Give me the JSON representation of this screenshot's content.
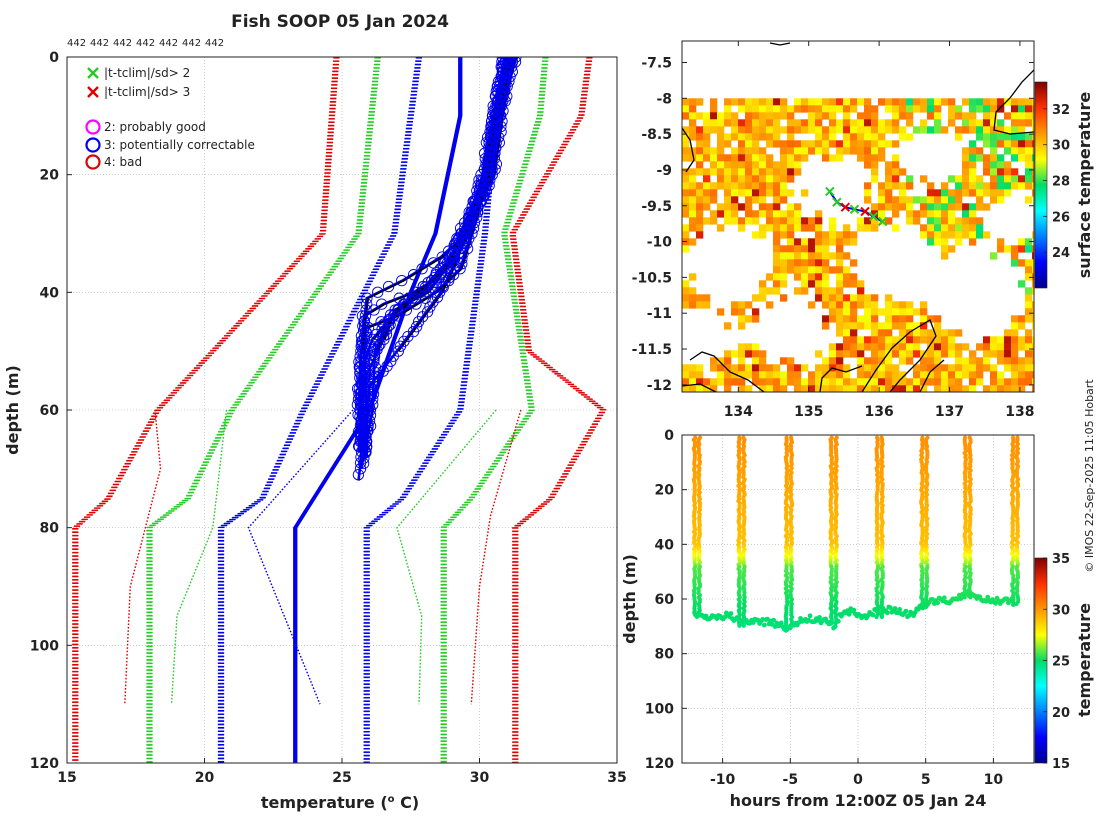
{
  "colors": {
    "red": "#e00000",
    "green": "#22cc22",
    "blue": "#0000ee",
    "black": "#000000",
    "magenta": "#ff00ff",
    "coast": "#000000"
  },
  "chart_data": [
    {
      "id": "profiles",
      "type": "line",
      "title": "Fish SOOP 05 Jan 2024",
      "id_labels": [
        "442",
        "442",
        "442",
        "442",
        "442",
        "442",
        "442"
      ],
      "xlabel": "temperature (",
      "xlabel_sup": "o",
      "xlabel_end": " C)",
      "ylabel": "depth (m)",
      "xlim": [
        15,
        35
      ],
      "ylim": [
        0,
        120
      ],
      "xticks": [
        15,
        20,
        25,
        30,
        35
      ],
      "yticks": [
        0,
        20,
        40,
        60,
        80,
        100,
        120
      ],
      "legend": [
        {
          "symbol": "x",
          "color": "#22cc22",
          "label": "|t-tclim|/sd> 2"
        },
        {
          "symbol": "x",
          "color": "#e00000",
          "label": "|t-tclim|/sd> 3"
        },
        {
          "symbol": "o",
          "color": "#ff00ff",
          "label": "2: probably good"
        },
        {
          "symbol": "o",
          "color": "#0000ee",
          "label": "3: potentially correctable"
        },
        {
          "symbol": "o",
          "color": "#e00000",
          "label": "4: bad"
        }
      ],
      "envelopes": [
        {
          "name": "clim -3sd",
          "color": "#e00000",
          "depth": [
            0,
            30,
            60,
            75,
            80,
            120
          ],
          "temp": [
            24.8,
            24.3,
            18.3,
            16.5,
            15.3,
            15.3
          ]
        },
        {
          "name": "clim -2sd",
          "color": "#22cc22",
          "depth": [
            0,
            30,
            60,
            75,
            80,
            120
          ],
          "temp": [
            26.3,
            25.6,
            21.0,
            19.4,
            18.0,
            18.0
          ]
        },
        {
          "name": "clim -1sd",
          "color": "#0000ee",
          "depth": [
            0,
            30,
            60,
            75,
            80,
            120
          ],
          "temp": [
            27.8,
            26.9,
            23.6,
            22.1,
            20.6,
            20.6
          ]
        },
        {
          "name": "clim +1sd",
          "color": "#0000ee",
          "depth": [
            0,
            30,
            60,
            75,
            80,
            120
          ],
          "temp": [
            30.8,
            30.2,
            29.3,
            27.2,
            25.9,
            25.9
          ]
        },
        {
          "name": "clim +2sd",
          "color": "#22cc22",
          "depth": [
            0,
            10,
            30,
            60,
            75,
            80,
            120
          ],
          "temp": [
            32.4,
            32.2,
            30.9,
            31.9,
            29.7,
            28.7,
            28.7
          ]
        },
        {
          "name": "clim +3sd",
          "color": "#e00000",
          "depth": [
            0,
            10,
            30,
            50,
            60,
            75,
            80,
            120
          ],
          "temp": [
            34.0,
            33.7,
            31.2,
            31.8,
            34.5,
            32.6,
            31.3,
            31.3
          ]
        }
      ],
      "thin_curves": [
        {
          "color": "#e00000",
          "depth": [
            60,
            70,
            90,
            110
          ],
          "temp": [
            18.2,
            18.4,
            17.3,
            17.1
          ]
        },
        {
          "color": "#22cc22",
          "depth": [
            60,
            80,
            95,
            110
          ],
          "temp": [
            20.8,
            20.3,
            19.0,
            18.8
          ]
        },
        {
          "color": "#0000ee",
          "depth": [
            60,
            80,
            95,
            110
          ],
          "temp": [
            25.4,
            21.6,
            22.9,
            24.2
          ]
        },
        {
          "color": "#22cc22",
          "depth": [
            60,
            80,
            95,
            110
          ],
          "temp": [
            30.6,
            27.0,
            27.9,
            27.8
          ]
        },
        {
          "color": "#e00000",
          "depth": [
            60,
            78,
            90,
            110
          ],
          "temp": [
            31.5,
            30.4,
            30.0,
            29.7
          ]
        }
      ],
      "mean_profile": {
        "depth": [
          0,
          10,
          30,
          40,
          60,
          80,
          100,
          110,
          120
        ],
        "temp": [
          29.3,
          29.3,
          28.4,
          27.5,
          26.0,
          23.3,
          23.3,
          23.3,
          23.3
        ]
      },
      "observed_profiles": [
        {
          "depth": [
            0,
            5,
            10,
            20,
            30,
            35,
            38,
            40,
            42,
            44,
            50,
            60,
            68,
            72
          ],
          "temp": [
            31.0,
            30.9,
            30.7,
            30.4,
            29.6,
            29.0,
            28.3,
            27.6,
            26.5,
            25.8,
            25.7,
            25.7,
            25.7,
            25.6
          ]
        },
        {
          "depth": [
            0,
            5,
            10,
            20,
            30,
            34,
            38,
            41,
            45,
            50,
            60,
            68
          ],
          "temp": [
            31.2,
            30.8,
            30.6,
            30.2,
            29.5,
            28.6,
            27.2,
            25.9,
            25.8,
            25.8,
            25.9,
            25.9
          ]
        },
        {
          "depth": [
            0,
            5,
            10,
            20,
            30,
            36,
            40,
            44,
            46,
            50,
            60,
            66
          ],
          "temp": [
            31.0,
            30.7,
            30.5,
            30.3,
            29.7,
            29.3,
            28.4,
            27.0,
            25.9,
            25.7,
            25.6,
            25.7
          ]
        },
        {
          "depth": [
            0,
            5,
            10,
            20,
            30,
            35,
            39,
            42,
            48,
            52,
            60,
            65
          ],
          "temp": [
            31.3,
            31.0,
            30.8,
            30.5,
            29.4,
            28.8,
            28.0,
            27.2,
            26.1,
            25.8,
            25.7,
            25.8
          ]
        },
        {
          "depth": [
            0,
            5,
            10,
            20,
            30,
            35,
            40,
            43,
            48,
            55,
            62,
            67
          ],
          "temp": [
            31.1,
            30.9,
            30.6,
            30.2,
            29.3,
            28.9,
            28.1,
            26.9,
            26.5,
            25.8,
            25.7,
            25.6
          ]
        },
        {
          "depth": [
            0,
            5,
            10,
            20,
            30,
            35,
            40,
            45,
            50,
            56,
            62,
            68
          ],
          "temp": [
            30.9,
            30.7,
            30.5,
            30.1,
            29.5,
            29.1,
            28.6,
            27.8,
            27.0,
            26.0,
            25.9,
            25.8
          ]
        },
        {
          "depth": [
            0,
            5,
            10,
            20,
            30,
            35,
            40,
            44,
            50,
            60,
            70
          ],
          "temp": [
            31.1,
            30.9,
            30.6,
            30.3,
            29.5,
            28.8,
            27.9,
            26.8,
            26.2,
            26.1,
            25.7
          ]
        }
      ]
    },
    {
      "id": "sst_map",
      "type": "heatmap",
      "title": "",
      "xlim": [
        133.2,
        138.2
      ],
      "ylim": [
        -12.1,
        -7.2
      ],
      "xticks": [
        134,
        135,
        136,
        137,
        138
      ],
      "yticks": [
        -7.5,
        -8,
        -8.5,
        -9,
        -9.5,
        -10,
        -10.5,
        -11,
        -11.5,
        -12
      ],
      "ytick_labels": [
        "-7.5",
        "-8",
        "-8.5",
        "-9",
        "-9.5",
        "-10",
        "-10.5",
        "-11",
        "-11.5",
        "-12"
      ],
      "data_extent": {
        "lon": [
          133.2,
          138.2
        ],
        "lat": [
          -12.1,
          -8.0
        ]
      },
      "colorbar": {
        "label": "surface temperature",
        "range": [
          22,
          33.5
        ],
        "ticks": [
          24,
          26,
          28,
          30,
          32
        ]
      },
      "track": [
        {
          "lon": 135.3,
          "lat": -9.3,
          "flag": "green"
        },
        {
          "lon": 135.4,
          "lat": -9.45,
          "flag": "green"
        },
        {
          "lon": 135.52,
          "lat": -9.52,
          "flag": "red"
        },
        {
          "lon": 135.65,
          "lat": -9.55,
          "flag": "green"
        },
        {
          "lon": 135.8,
          "lat": -9.58,
          "flag": "red"
        },
        {
          "lon": 135.92,
          "lat": -9.65,
          "flag": "green"
        },
        {
          "lon": 136.05,
          "lat": -9.72,
          "flag": "green"
        }
      ]
    },
    {
      "id": "time_depth",
      "type": "scatter",
      "title": "",
      "xlabel": "hours from 12:00Z 05 Jan 24",
      "ylabel": "depth (m)",
      "xlim": [
        -13,
        13
      ],
      "ylim": [
        0,
        120
      ],
      "xticks": [
        -10,
        -5,
        0,
        5,
        10
      ],
      "yticks": [
        0,
        20,
        40,
        60,
        80,
        100,
        120
      ],
      "colorbar": {
        "label": "temperature",
        "range": [
          15,
          35
        ],
        "ticks": [
          15,
          20,
          25,
          30,
          35
        ]
      },
      "profiles": [
        {
          "hour": -11.9,
          "max_depth": 66
        },
        {
          "hour": -8.6,
          "max_depth": 70
        },
        {
          "hour": -5.1,
          "max_depth": 71
        },
        {
          "hour": -1.8,
          "max_depth": 69
        },
        {
          "hour": 1.6,
          "max_depth": 67
        },
        {
          "hour": 4.9,
          "max_depth": 62
        },
        {
          "hour": 8.1,
          "max_depth": 60
        },
        {
          "hour": 11.6,
          "max_depth": 62
        }
      ],
      "tow_depth": [
        {
          "hour": -11.9,
          "depth": 66
        },
        {
          "hour": -11.0,
          "depth": 67
        },
        {
          "hour": -9.5,
          "depth": 66
        },
        {
          "hour": -8.6,
          "depth": 69
        },
        {
          "hour": -7.5,
          "depth": 68
        },
        {
          "hour": -6.0,
          "depth": 69
        },
        {
          "hour": -5.1,
          "depth": 71
        },
        {
          "hour": -4.0,
          "depth": 67
        },
        {
          "hour": -2.5,
          "depth": 68
        },
        {
          "hour": -1.8,
          "depth": 70
        },
        {
          "hour": -1.0,
          "depth": 64
        },
        {
          "hour": 0.5,
          "depth": 66
        },
        {
          "hour": 1.6,
          "depth": 64
        },
        {
          "hour": 2.5,
          "depth": 64
        },
        {
          "hour": 4.0,
          "depth": 66
        },
        {
          "hour": 4.9,
          "depth": 62
        },
        {
          "hour": 6.0,
          "depth": 60
        },
        {
          "hour": 7.0,
          "depth": 61
        },
        {
          "hour": 8.1,
          "depth": 58
        },
        {
          "hour": 9.0,
          "depth": 60
        },
        {
          "hour": 10.5,
          "depth": 61
        },
        {
          "hour": 11.6,
          "depth": 61
        }
      ]
    }
  ],
  "credit": "© IMOS 22-Sep-2025 11:05 Hobart"
}
